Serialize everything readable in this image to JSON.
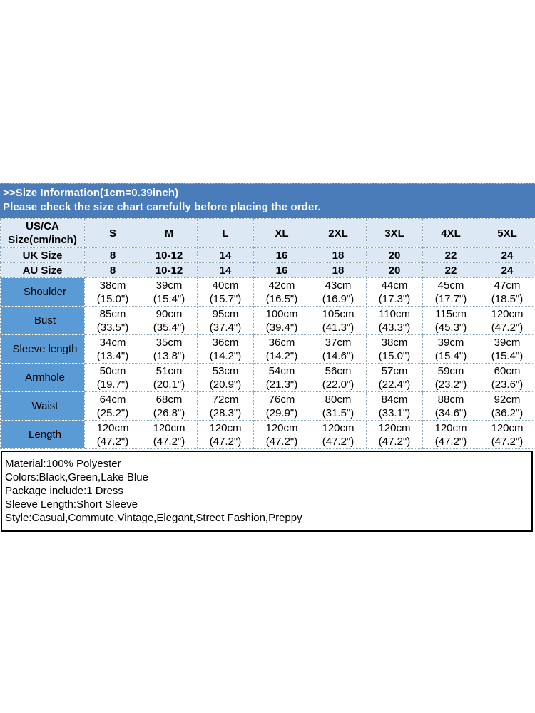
{
  "banner": {
    "line1": ">>Size Information(1cm=0.39inch)",
    "line2": "Please check the size chart carefully before placing the order."
  },
  "chart_data": {
    "type": "table",
    "title": ">>Size Information(1cm=0.39inch)",
    "corner_label": "US/CA\nSize(cm/inch)",
    "size_columns": [
      "S",
      "M",
      "L",
      "XL",
      "2XL",
      "3XL",
      "4XL",
      "5XL"
    ],
    "uk_row": {
      "label": "UK Size",
      "values": [
        "8",
        "10-12",
        "14",
        "16",
        "18",
        "20",
        "22",
        "24"
      ]
    },
    "au_row": {
      "label": "AU Size",
      "values": [
        "8",
        "10-12",
        "14",
        "16",
        "18",
        "20",
        "22",
        "24"
      ]
    },
    "measurement_rows": [
      {
        "label": "Shoulder",
        "values": [
          "38cm\n(15.0\")",
          "39cm\n(15.4\")",
          "40cm\n(15.7\")",
          "42cm\n(16.5\")",
          "43cm\n(16.9\")",
          "44cm\n(17.3\")",
          "45cm\n(17.7\")",
          "47cm\n(18.5\")"
        ]
      },
      {
        "label": "Bust",
        "values": [
          "85cm\n(33.5\")",
          "90cm\n(35.4\")",
          "95cm\n(37.4\")",
          "100cm\n(39.4\")",
          "105cm\n(41.3\")",
          "110cm\n(43.3\")",
          "115cm\n(45.3\")",
          "120cm\n(47.2\")"
        ]
      },
      {
        "label": "Sleeve length",
        "values": [
          "34cm\n(13.4\")",
          "35cm\n(13.8\")",
          "36cm\n(14.2\")",
          "36cm\n(14.2\")",
          "37cm\n(14.6\")",
          "38cm\n(15.0\")",
          "39cm\n(15.4\")",
          "39cm\n(15.4\")"
        ]
      },
      {
        "label": "Armhole",
        "values": [
          "50cm\n(19.7\")",
          "51cm\n(20.1\")",
          "53cm\n(20.9\")",
          "54cm\n(21.3\")",
          "56cm\n(22.0\")",
          "57cm\n(22.4\")",
          "59cm\n(23.2\")",
          "60cm\n(23.6\")"
        ]
      },
      {
        "label": "Waist",
        "values": [
          "64cm\n(25.2\")",
          "68cm\n(26.8\")",
          "72cm\n(28.3\")",
          "76cm\n(29.9\")",
          "80cm\n(31.5\")",
          "84cm\n(33.1\")",
          "88cm\n(34.6\")",
          "92cm\n(36.2\")"
        ]
      },
      {
        "label": "Length",
        "values": [
          "120cm\n(47.2\")",
          "120cm\n(47.2\")",
          "120cm\n(47.2\")",
          "120cm\n(47.2\")",
          "120cm\n(47.2\")",
          "120cm\n(47.2\")",
          "120cm\n(47.2\")",
          "120cm\n(47.2\")"
        ]
      }
    ]
  },
  "product_info": {
    "lines": [
      "Material:100% Polyester",
      "Colors:Black,Green,Lake Blue",
      "Package include:1 Dress",
      "Sleeve Length:Short Sleeve",
      "Style:Casual,Commute,Vintage,Elegant,Street Fashion,Preppy"
    ]
  },
  "colors": {
    "banner_bg": "#4a7cb9",
    "header_bg": "#dce8f4",
    "label_column_bg": "#5b9bd5",
    "grid_line": "#8ea9c4",
    "banner_text": "#ffffff",
    "body_text": "#000000"
  }
}
